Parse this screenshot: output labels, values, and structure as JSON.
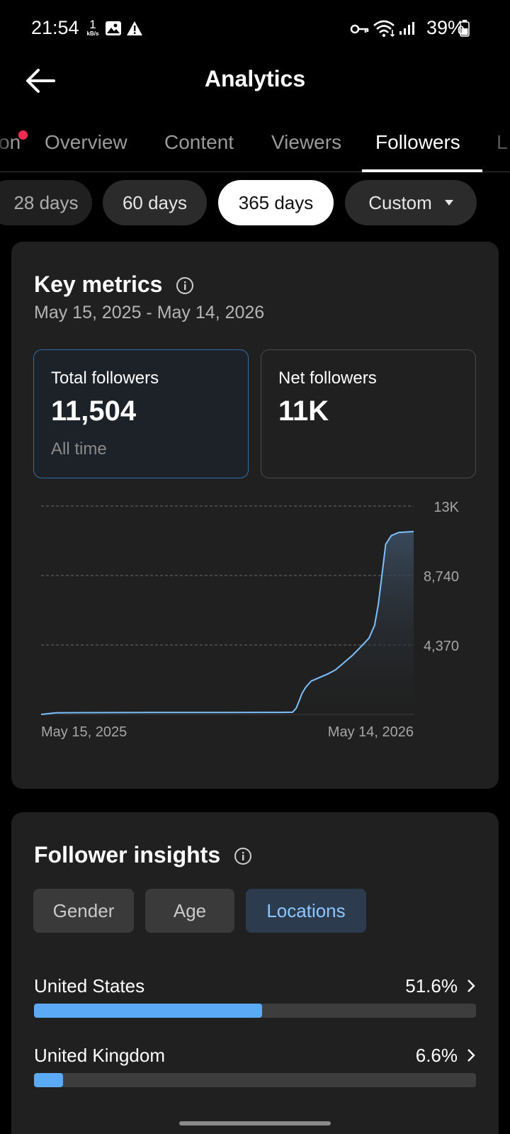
{
  "status": {
    "time": "21:54",
    "net_speed": "1",
    "net_unit": "kB/s",
    "battery": "39%"
  },
  "header": {
    "title": "Analytics"
  },
  "tabs": [
    {
      "label": "on",
      "dot": true
    },
    {
      "label": "Overview"
    },
    {
      "label": "Content"
    },
    {
      "label": "Viewers"
    },
    {
      "label": "Followers",
      "active": true
    },
    {
      "label": "L"
    }
  ],
  "ranges": [
    {
      "label": "28 days"
    },
    {
      "label": "60 days"
    },
    {
      "label": "365 days",
      "active": true
    },
    {
      "label": "Custom"
    }
  ],
  "key_metrics": {
    "title": "Key metrics",
    "date_range": "May 15, 2025 - May 14, 2026",
    "total": {
      "label": "Total followers",
      "value": "11,504",
      "sub": "All time"
    },
    "net": {
      "label": "Net followers",
      "value": "11K"
    }
  },
  "chart_data": {
    "type": "area",
    "x_start_label": "May 15, 2025",
    "x_end_label": "May 14, 2026",
    "yticks": [
      "13K",
      "8,740",
      "4,370"
    ],
    "ytick_values": [
      13110,
      8740,
      4370
    ],
    "ylim": [
      0,
      13110
    ],
    "line_color": "#7cc0ff",
    "grid": true,
    "points": [
      [
        0,
        0
      ],
      [
        0.04,
        100
      ],
      [
        0.12,
        110
      ],
      [
        0.3,
        120
      ],
      [
        0.5,
        120
      ],
      [
        0.64,
        130
      ],
      [
        0.675,
        140
      ],
      [
        0.685,
        400
      ],
      [
        0.695,
        1000
      ],
      [
        0.7,
        1300
      ],
      [
        0.71,
        1700
      ],
      [
        0.725,
        2100
      ],
      [
        0.745,
        2300
      ],
      [
        0.77,
        2550
      ],
      [
        0.79,
        2800
      ],
      [
        0.81,
        3200
      ],
      [
        0.835,
        3700
      ],
      [
        0.86,
        4300
      ],
      [
        0.88,
        4800
      ],
      [
        0.895,
        5600
      ],
      [
        0.905,
        6900
      ],
      [
        0.915,
        8800
      ],
      [
        0.925,
        10700
      ],
      [
        0.94,
        11250
      ],
      [
        0.96,
        11450
      ],
      [
        1.0,
        11504
      ]
    ]
  },
  "insights": {
    "title": "Follower insights",
    "segments": [
      {
        "label": "Gender"
      },
      {
        "label": "Age"
      },
      {
        "label": "Locations",
        "active": true
      }
    ],
    "locations": [
      {
        "name": "United States",
        "pct_label": "51.6%",
        "pct": 51.6
      },
      {
        "name": "United Kingdom",
        "pct_label": "6.6%",
        "pct": 6.6
      }
    ]
  }
}
